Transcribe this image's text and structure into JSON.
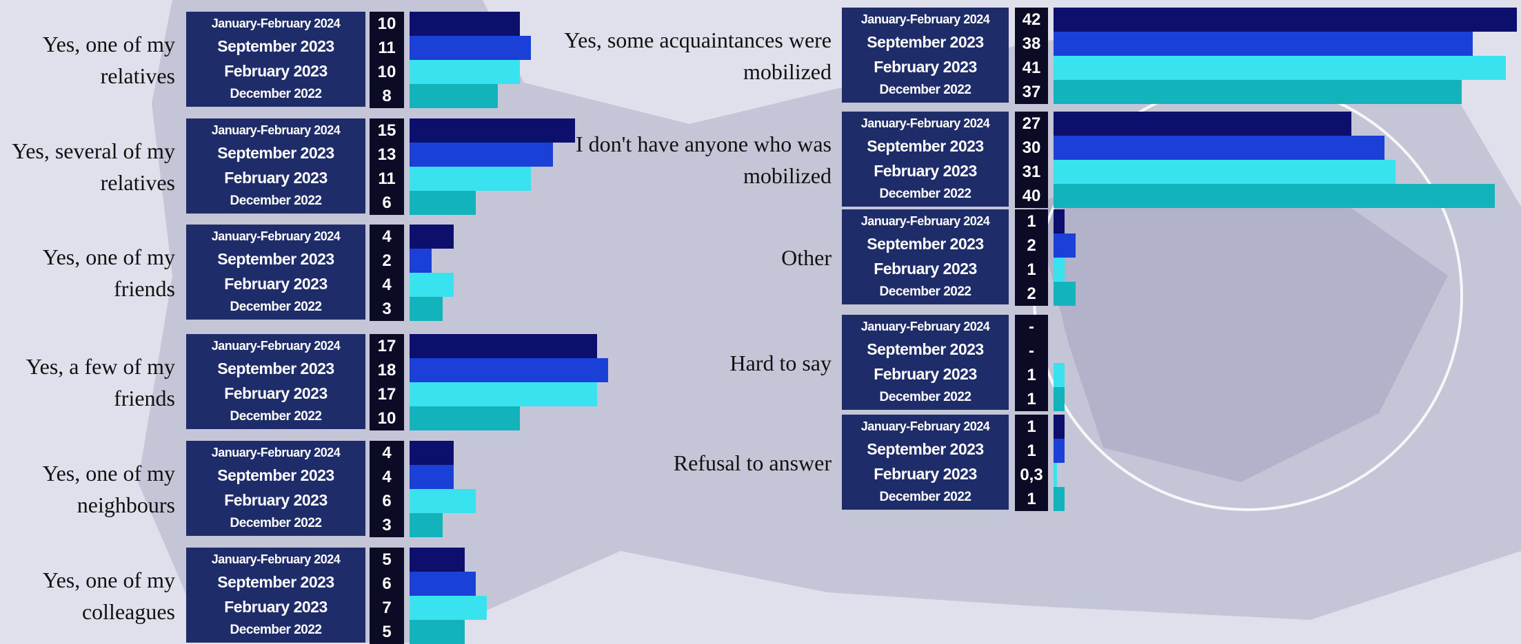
{
  "chart_data": {
    "type": "bar",
    "categories": [
      "Yes, one of my relatives",
      "Yes, several of my relatives",
      "Yes, one of my friends",
      "Yes, a few of my friends",
      "Yes, one of my neighbours",
      "Yes, one of my colleagues",
      "Yes, some acquaintances were mobilized",
      "I don't have anyone who was mobilized",
      "Other",
      "Hard to say",
      "Refusal to answer"
    ],
    "series": [
      {
        "name": "January-February 2024",
        "color": "#0c0f6b",
        "values": [
          10,
          15,
          4,
          17,
          4,
          5,
          42,
          27,
          1,
          null,
          1
        ],
        "value_labels": [
          "10",
          "15",
          "4",
          "17",
          "4",
          "5",
          "42",
          "27",
          "1",
          "-",
          "1"
        ]
      },
      {
        "name": "September 2023",
        "color": "#1a40d8",
        "values": [
          11,
          13,
          2,
          18,
          4,
          6,
          38,
          30,
          2,
          null,
          1
        ],
        "value_labels": [
          "11",
          "13",
          "2",
          "18",
          "4",
          "6",
          "38",
          "30",
          "2",
          "-",
          "1"
        ]
      },
      {
        "name": "February 2023",
        "color": "#38e2ee",
        "values": [
          10,
          11,
          4,
          17,
          6,
          7,
          41,
          31,
          1,
          1,
          0.3
        ],
        "value_labels": [
          "10",
          "11",
          "4",
          "17",
          "6",
          "7",
          "41",
          "31",
          "1",
          "1",
          "0,3"
        ]
      },
      {
        "name": "December 2022",
        "color": "#12b3bb",
        "values": [
          8,
          6,
          3,
          10,
          3,
          5,
          37,
          40,
          2,
          1,
          1
        ],
        "value_labels": [
          "8",
          "6",
          "3",
          "10",
          "3",
          "5",
          "37",
          "40",
          "2",
          "1",
          "1"
        ]
      }
    ]
  }
}
